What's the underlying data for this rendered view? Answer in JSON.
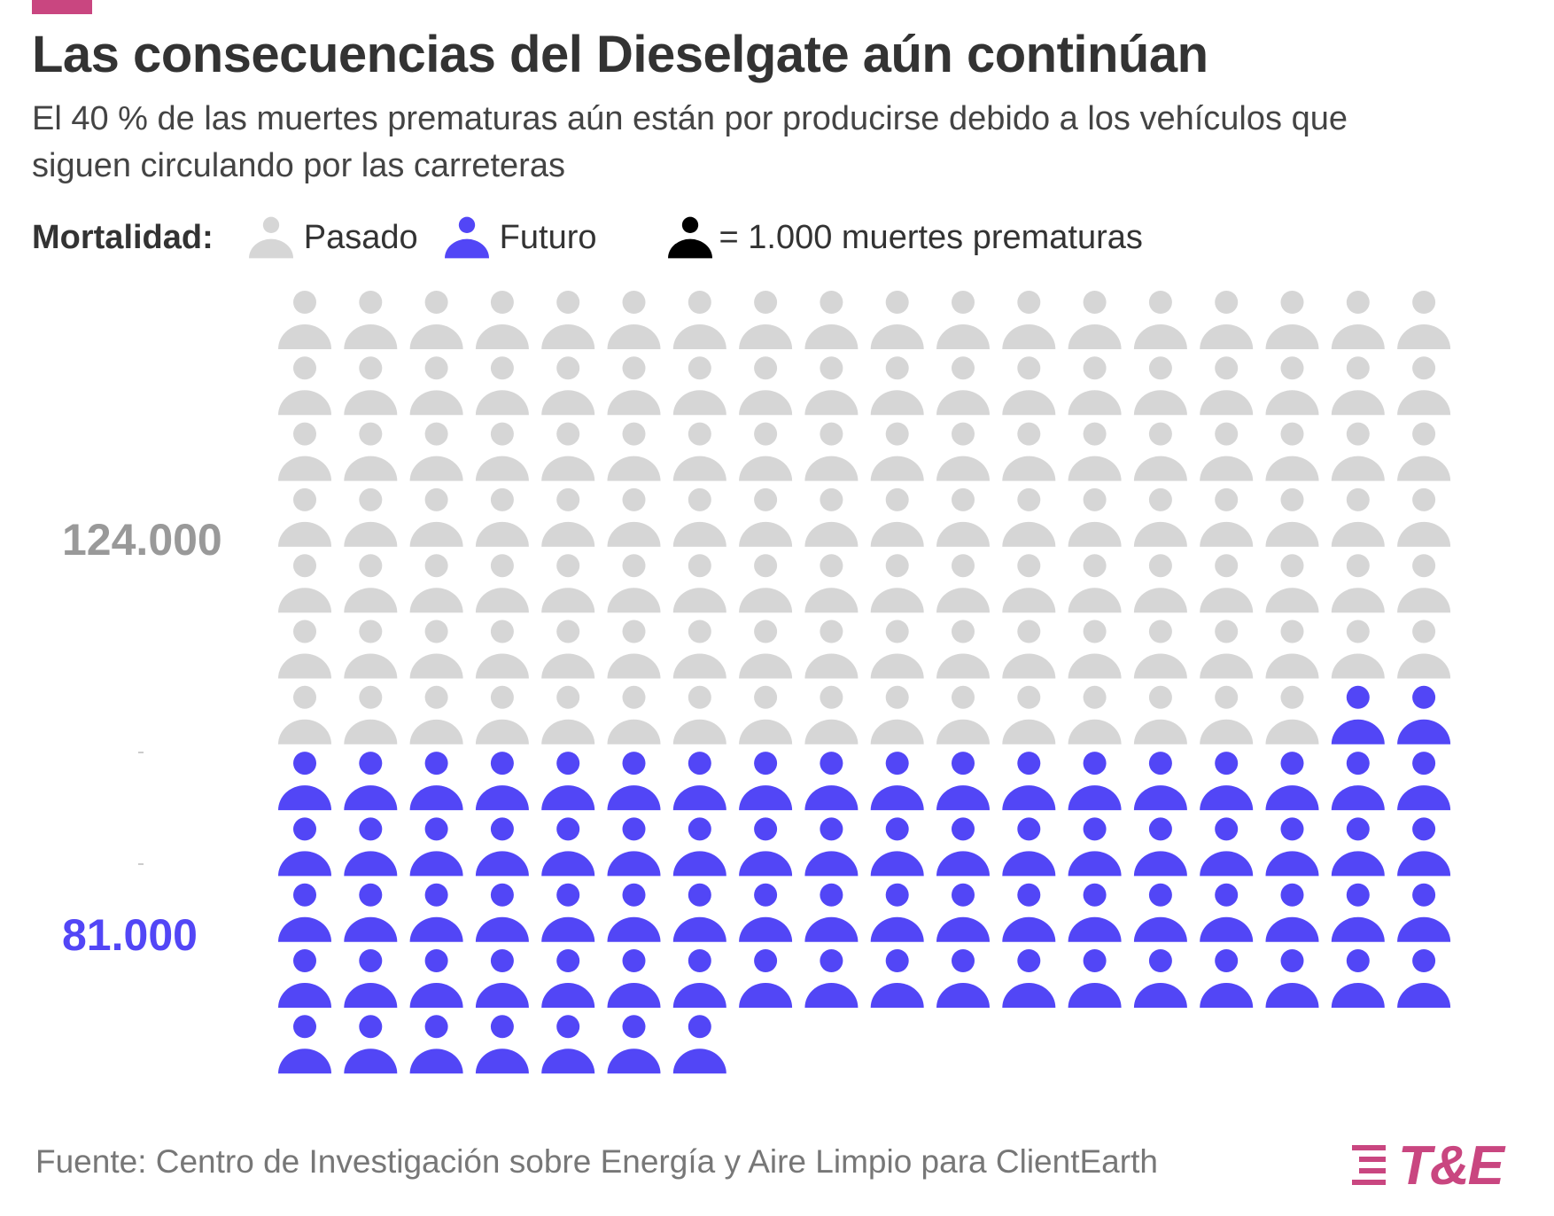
{
  "header": {
    "title": "Las consecuencias del Dieselgate aún continúan",
    "subtitle": "El 40 % de las muertes prematuras aún están por producirse debido a los vehículos que siguen circulando por las carreteras"
  },
  "legend": {
    "title": "Mortalidad:",
    "items": [
      {
        "label": "Pasado",
        "color": "#d6d6d6"
      },
      {
        "label": "Futuro",
        "color": "#5246f6"
      }
    ],
    "unit_label": "= 1.000 muertes prematuras",
    "unit_icon": "person-icon",
    "unit_color": "#000000"
  },
  "chart_data": {
    "type": "waffle",
    "title": "Las consecuencias del Dieselgate aún continúan",
    "unit": "1.000 muertes prematuras",
    "columns": 18,
    "series": [
      {
        "name": "Pasado",
        "value": 124000,
        "icons": 124,
        "color": "#d6d6d6",
        "label": "124.000"
      },
      {
        "name": "Futuro",
        "value": 81000,
        "icons": 81,
        "color": "#5246f6",
        "label": "81.000"
      }
    ],
    "total_icons": 205
  },
  "footer": {
    "source": "Fuente: Centro de Investigación sobre Energía y Aire Limpio para ClientEarth",
    "logo_text": "T&E",
    "accent_color": "#c94680"
  }
}
